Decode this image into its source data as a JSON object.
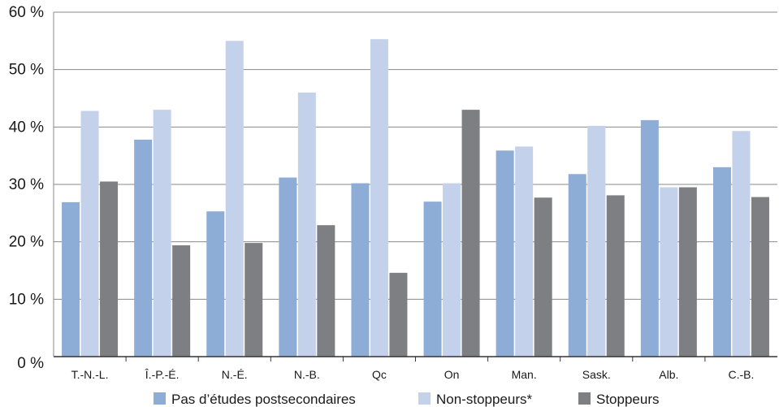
{
  "chart_data": {
    "type": "bar",
    "title": "",
    "xlabel": "",
    "ylabel": "",
    "ylim": [
      0,
      60
    ],
    "yticks": [
      0,
      10,
      20,
      30,
      40,
      50,
      60
    ],
    "ytick_suffix": " %",
    "grid": true,
    "legend_position": "bottom",
    "categories": [
      "T.-N.-L.",
      "Î.-P.-É.",
      "N.-É.",
      "N.-B.",
      "Qc",
      "On",
      "Man.",
      "Sask.",
      "Alb.",
      "C.-B."
    ],
    "series": [
      {
        "name": "Pas d’études postsecondaires",
        "color": "#8eadd6",
        "values": [
          26.9,
          37.8,
          25.3,
          31.2,
          30.2,
          27.0,
          35.9,
          31.8,
          41.2,
          33.0
        ]
      },
      {
        "name": "Non-stoppeurs*",
        "color": "#c3d1ea",
        "values": [
          42.8,
          43.0,
          55.0,
          46.0,
          55.3,
          30.2,
          36.6,
          40.2,
          29.5,
          39.3
        ]
      },
      {
        "name": "Stoppeurs",
        "color": "#7e7f82",
        "values": [
          30.5,
          19.4,
          19.8,
          22.9,
          14.6,
          43.0,
          27.7,
          28.1,
          29.5,
          27.8
        ]
      }
    ]
  }
}
